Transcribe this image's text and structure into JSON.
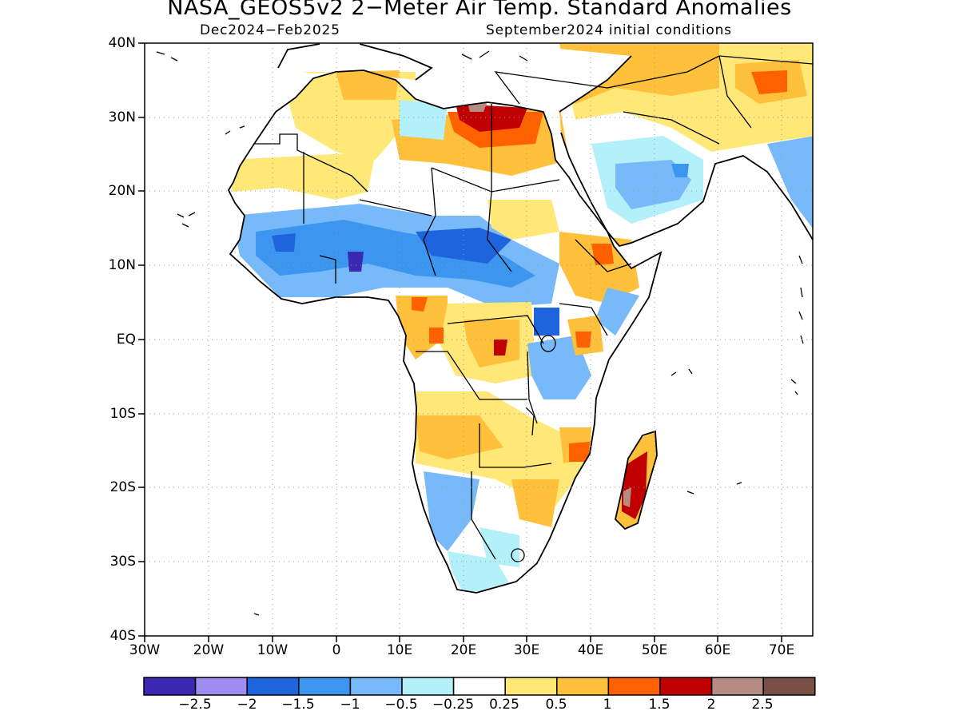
{
  "title": "NASA_GEOS5v2 2−Meter Air Temp. Standard Anomalies",
  "subtitle_left": "Dec2024−Feb2025",
  "subtitle_right": "September2024 initial conditions",
  "lat_labels": [
    "40N",
    "30N",
    "20N",
    "10N",
    "EQ",
    "10S",
    "20S",
    "30S",
    "40S"
  ],
  "lon_labels": [
    "30W",
    "20W",
    "10W",
    "0",
    "10E",
    "20E",
    "30E",
    "40E",
    "50E",
    "60E",
    "70E"
  ],
  "colorbar": {
    "colors": [
      "#3d28b4",
      "#9f8df0",
      "#1e64dc",
      "#3c96f0",
      "#78b9fa",
      "#b4f0fa",
      "#ffffff",
      "#ffe878",
      "#ffc03c",
      "#ff6000",
      "#c00000",
      "#b48c82",
      "#785046"
    ],
    "labels": [
      "−2.5",
      "−2",
      "−1.5",
      "−1",
      "−0.5",
      "−0.25",
      "0.25",
      "0.5",
      "1",
      "1.5",
      "2",
      "2.5"
    ]
  }
}
